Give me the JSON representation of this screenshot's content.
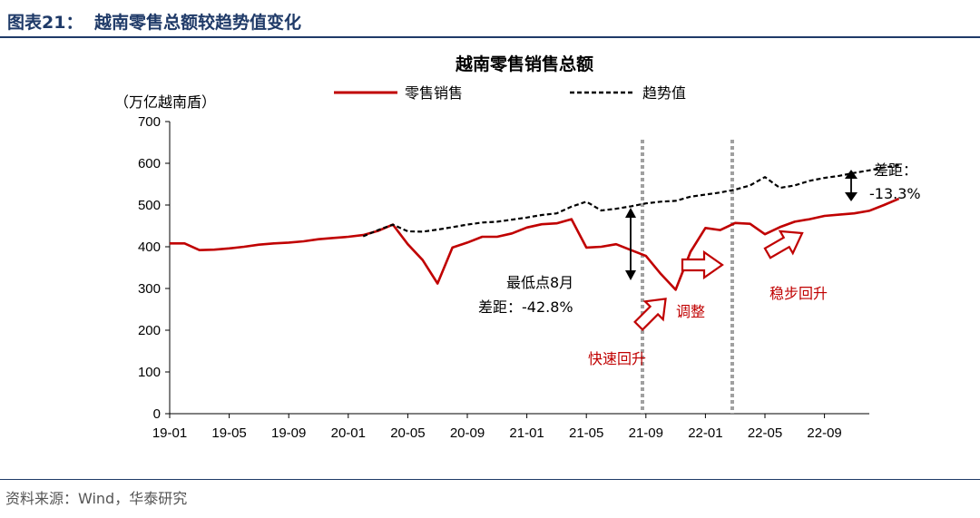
{
  "header": {
    "label": "图表21：",
    "title": "越南零售总额较趋势值变化"
  },
  "source": "资料来源：Wind，华泰研究",
  "chart_data": {
    "type": "line",
    "title": "越南零售销售总额",
    "ylabel": "（万亿越南盾）",
    "ylim": [
      0,
      700
    ],
    "yticks": [
      0,
      100,
      200,
      300,
      400,
      500,
      600,
      700
    ],
    "xticks": [
      "19-01",
      "19-05",
      "19-09",
      "20-01",
      "20-05",
      "20-09",
      "21-01",
      "21-05",
      "21-09",
      "22-01",
      "22-05",
      "22-09"
    ],
    "legend_position": "top",
    "grid": false,
    "series": [
      {
        "name": "零售销售",
        "color": "#c00000",
        "style": "solid",
        "values": [
          408,
          408,
          392,
          393,
          396,
          400,
          405,
          408,
          410,
          413,
          418,
          421,
          424,
          428,
          438,
          453,
          406,
          368,
          312,
          398,
          410,
          424,
          424,
          432,
          446,
          454,
          456,
          466,
          398,
          400,
          406,
          392,
          378,
          335,
          297,
          388,
          445,
          440,
          457,
          455,
          430,
          447,
          460,
          466,
          474,
          477,
          480,
          486,
          500,
          515
        ]
      },
      {
        "name": "趋势值",
        "color": "#000000",
        "style": "dashed",
        "values": [
          null,
          null,
          null,
          null,
          null,
          null,
          null,
          null,
          null,
          null,
          null,
          null,
          null,
          425,
          440,
          453,
          437,
          436,
          441,
          447,
          453,
          458,
          460,
          465,
          470,
          476,
          480,
          496,
          508,
          487,
          491,
          497,
          504,
          508,
          510,
          520,
          525,
          530,
          537,
          547,
          567,
          541,
          547,
          558,
          565,
          570,
          577,
          583,
          590,
          595
        ]
      }
    ],
    "annotations": [
      {
        "text_line1": "最低点8月",
        "text_line2": "差距：-42.8%"
      },
      {
        "text_line1": "差距：",
        "text_line2": "-13.3%"
      },
      {
        "text": "快速回升"
      },
      {
        "text": "调整"
      },
      {
        "text": "稳步回升"
      }
    ]
  }
}
